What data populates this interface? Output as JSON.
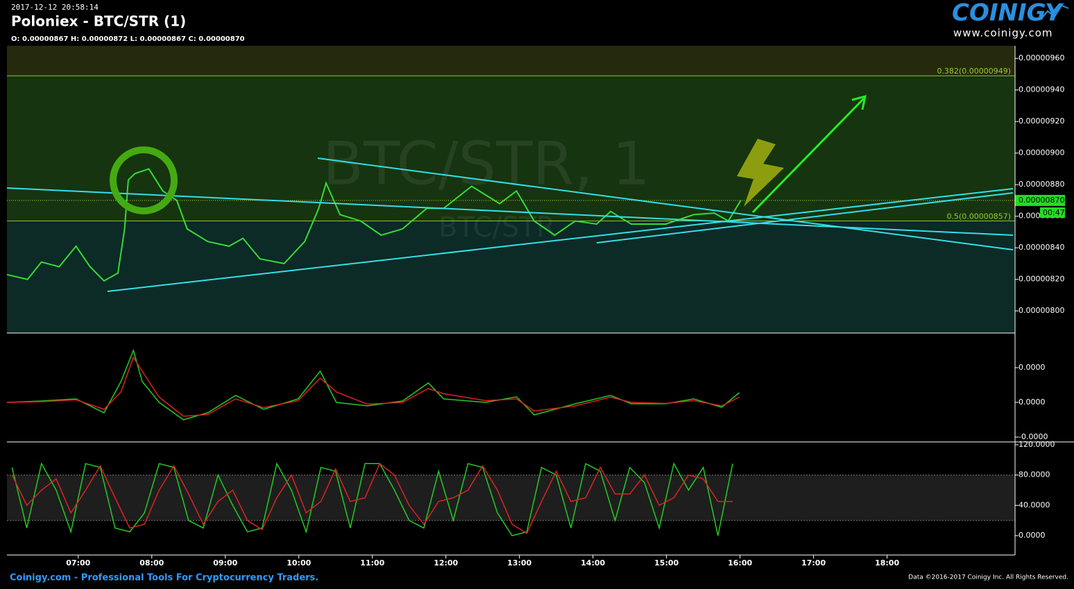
{
  "header": {
    "timestamp": "2017-12-12 20:58:14",
    "title": "Poloniex - BTC/STR (1)",
    "ohlc": "O: 0.00000867 H: 0.00000872 L: 0.00000867 C: 0.00000870"
  },
  "logo": {
    "name": "COINIGY",
    "url": "www.coinigy.com"
  },
  "watermark": {
    "main": "BTC/STR, 1",
    "sub": "BTC/STR"
  },
  "footer": {
    "left": "Coinigy.com - Professional Tools For Cryptocurrency Traders.",
    "right": "Data ©2016-2017 Coinigy Inc. All Rights Reserved."
  },
  "chart_data": [
    {
      "type": "line",
      "x": [
        6.03,
        6.31,
        6.5,
        6.74,
        6.97,
        7.16,
        7.35,
        7.54,
        7.63,
        7.68,
        7.77,
        7.96,
        8.15,
        8.34,
        8.48,
        8.76,
        9.05,
        9.24,
        9.47,
        9.8,
        10.08,
        10.27,
        10.37,
        10.56,
        10.84,
        11.12,
        11.41,
        11.74,
        11.97,
        12.35,
        12.73,
        12.96,
        13.2,
        13.48,
        13.76,
        14.05,
        14.24,
        14.52,
        14.99,
        15.37,
        15.65,
        15.84,
        16.01
      ],
      "series": [
        {
          "color": "#33dd33",
          "values": [
            8.23e-06,
            8.2e-06,
            8.31e-06,
            8.28e-06,
            8.41e-06,
            8.28e-06,
            8.19e-06,
            8.24e-06,
            8.52e-06,
            8.83e-06,
            8.87e-06,
            8.9e-06,
            8.76e-06,
            8.7e-06,
            8.52e-06,
            8.44e-06,
            8.41e-06,
            8.46e-06,
            8.33e-06,
            8.3e-06,
            8.44e-06,
            8.65e-06,
            8.81e-06,
            8.61e-06,
            8.57e-06,
            8.48e-06,
            8.52e-06,
            8.65e-06,
            8.65e-06,
            8.79e-06,
            8.68e-06,
            8.76e-06,
            8.57e-06,
            8.48e-06,
            8.57e-06,
            8.55e-06,
            8.63e-06,
            8.55e-06,
            8.55e-06,
            8.61e-06,
            8.62e-06,
            8.57e-06,
            8.7e-06
          ]
        }
      ],
      "ylim": [
        7.86e-06,
        9.68e-06
      ],
      "yticks": [
        {
          "value": 9.6e-06,
          "label": "0.00000960"
        },
        {
          "value": 9.4e-06,
          "label": "0.00000940"
        },
        {
          "value": 9.2e-06,
          "label": "0.00000920"
        },
        {
          "value": 9e-06,
          "label": "0.00000900"
        },
        {
          "value": 8.8e-06,
          "label": "0.00000880"
        },
        {
          "value": 8.6e-06,
          "label": "0.00000860"
        },
        {
          "value": 8.4e-06,
          "label": "0.00000840"
        },
        {
          "value": 8.2e-06,
          "label": "0.00000820"
        },
        {
          "value": 8e-06,
          "label": "0.00000800"
        }
      ],
      "fib_levels": [
        {
          "label": "0.382(0.00000949)",
          "value": 9.49e-06
        },
        {
          "label": "0.5(0.00000857)",
          "value": 8.57e-06
        }
      ],
      "current_price": {
        "value": 8.7e-06,
        "label": "0.00000870",
        "countdown": "00:47"
      }
    },
    {
      "type": "line",
      "x": [
        6.03,
        6.5,
        6.97,
        7.35,
        7.58,
        7.75,
        7.87,
        8.1,
        8.43,
        8.76,
        9.14,
        9.52,
        9.99,
        10.29,
        10.51,
        10.93,
        11.41,
        11.76,
        11.97,
        12.54,
        12.96,
        13.2,
        13.76,
        14.24,
        14.52,
        14.99,
        15.37,
        15.75,
        15.99
      ],
      "series": [
        {
          "color": "#22cc22",
          "values": [
            0,
            8e-10,
            2e-09,
            -6e-09,
            1.2e-08,
            3e-08,
            1.2e-08,
            0,
            -1e-08,
            -6e-09,
            4e-09,
            -4e-09,
            2e-09,
            1.8e-08,
            0,
            -2e-09,
            8e-10,
            1.12e-08,
            2e-09,
            0,
            3.2e-09,
            -7.2e-09,
            -8e-10,
            4e-09,
            -8e-10,
            -8e-10,
            2e-09,
            -2.8e-09,
            5.6e-09
          ]
        },
        {
          "color": "#dd2222",
          "values": [
            0,
            4e-10,
            1.5e-09,
            -4e-09,
            6e-09,
            2.6e-08,
            1.8e-08,
            3e-09,
            -8e-09,
            -7e-09,
            2e-09,
            -3e-09,
            1e-09,
            1.4e-08,
            6e-09,
            -1e-09,
            0,
            8e-09,
            5e-09,
            1e-09,
            2e-09,
            -5e-09,
            -2e-09,
            3e-09,
            0,
            -6e-10,
            1e-09,
            -2e-09,
            3e-09
          ]
        }
      ],
      "ylim": [
        -2.28e-08,
        4e-08
      ],
      "yticks": [
        {
          "value": 2e-08,
          "label": "0.0000"
        },
        {
          "value": 0,
          "label": "0.0000"
        },
        {
          "value": -2e-08,
          "label": "-0.0000"
        }
      ]
    },
    {
      "type": "line",
      "x": [
        6.1,
        6.3,
        6.5,
        6.7,
        6.9,
        7.1,
        7.3,
        7.5,
        7.7,
        7.9,
        8.1,
        8.3,
        8.5,
        8.7,
        8.9,
        9.1,
        9.3,
        9.5,
        9.7,
        9.9,
        10.1,
        10.3,
        10.5,
        10.7,
        10.9,
        11.1,
        11.3,
        11.5,
        11.7,
        11.9,
        12.1,
        12.3,
        12.5,
        12.7,
        12.9,
        13.1,
        13.3,
        13.5,
        13.7,
        13.9,
        14.1,
        14.3,
        14.5,
        14.7,
        14.9,
        15.1,
        15.3,
        15.5,
        15.7,
        15.9
      ],
      "series": [
        {
          "color": "#22cc22",
          "values": [
            90,
            10,
            95,
            60,
            5,
            95,
            90,
            10,
            5,
            30,
            95,
            90,
            20,
            10,
            80,
            40,
            5,
            10,
            95,
            60,
            5,
            90,
            85,
            10,
            95,
            95,
            60,
            20,
            10,
            85,
            20,
            95,
            90,
            30,
            0,
            5,
            90,
            80,
            10,
            95,
            85,
            20,
            90,
            70,
            10,
            95,
            60,
            90,
            0,
            95
          ]
        },
        {
          "color": "#dd2222",
          "values": [
            80,
            40,
            60,
            75,
            30,
            60,
            92,
            50,
            10,
            15,
            60,
            92,
            55,
            15,
            45,
            60,
            20,
            8,
            50,
            80,
            30,
            45,
            88,
            45,
            50,
            95,
            80,
            40,
            15,
            45,
            50,
            60,
            92,
            60,
            15,
            3,
            45,
            85,
            45,
            50,
            90,
            55,
            55,
            80,
            40,
            50,
            80,
            75,
            45,
            45
          ]
        }
      ],
      "ylim": [
        -25.6,
        123.7
      ],
      "yticks": [
        {
          "value": 120,
          "label": "120.0000"
        },
        {
          "value": 80,
          "label": "80.0000"
        },
        {
          "value": 40,
          "label": "40.0000"
        },
        {
          "value": 0,
          "label": "0.0000"
        }
      ],
      "bands": [
        20,
        80
      ],
      "xlim": [
        6.03,
        19.74
      ],
      "xticks": [
        {
          "value": 7,
          "label": "07:00"
        },
        {
          "value": 8,
          "label": "08:00"
        },
        {
          "value": 9,
          "label": "09:00"
        },
        {
          "value": 10,
          "label": "10:00"
        },
        {
          "value": 11,
          "label": "11:00"
        },
        {
          "value": 12,
          "label": "12:00"
        },
        {
          "value": 13,
          "label": "13:00"
        },
        {
          "value": 14,
          "label": "14:00"
        },
        {
          "value": 15,
          "label": "15:00"
        },
        {
          "value": 16,
          "label": "16:00"
        },
        {
          "value": 17,
          "label": "17:00"
        },
        {
          "value": 18,
          "label": "18:00"
        }
      ]
    }
  ]
}
